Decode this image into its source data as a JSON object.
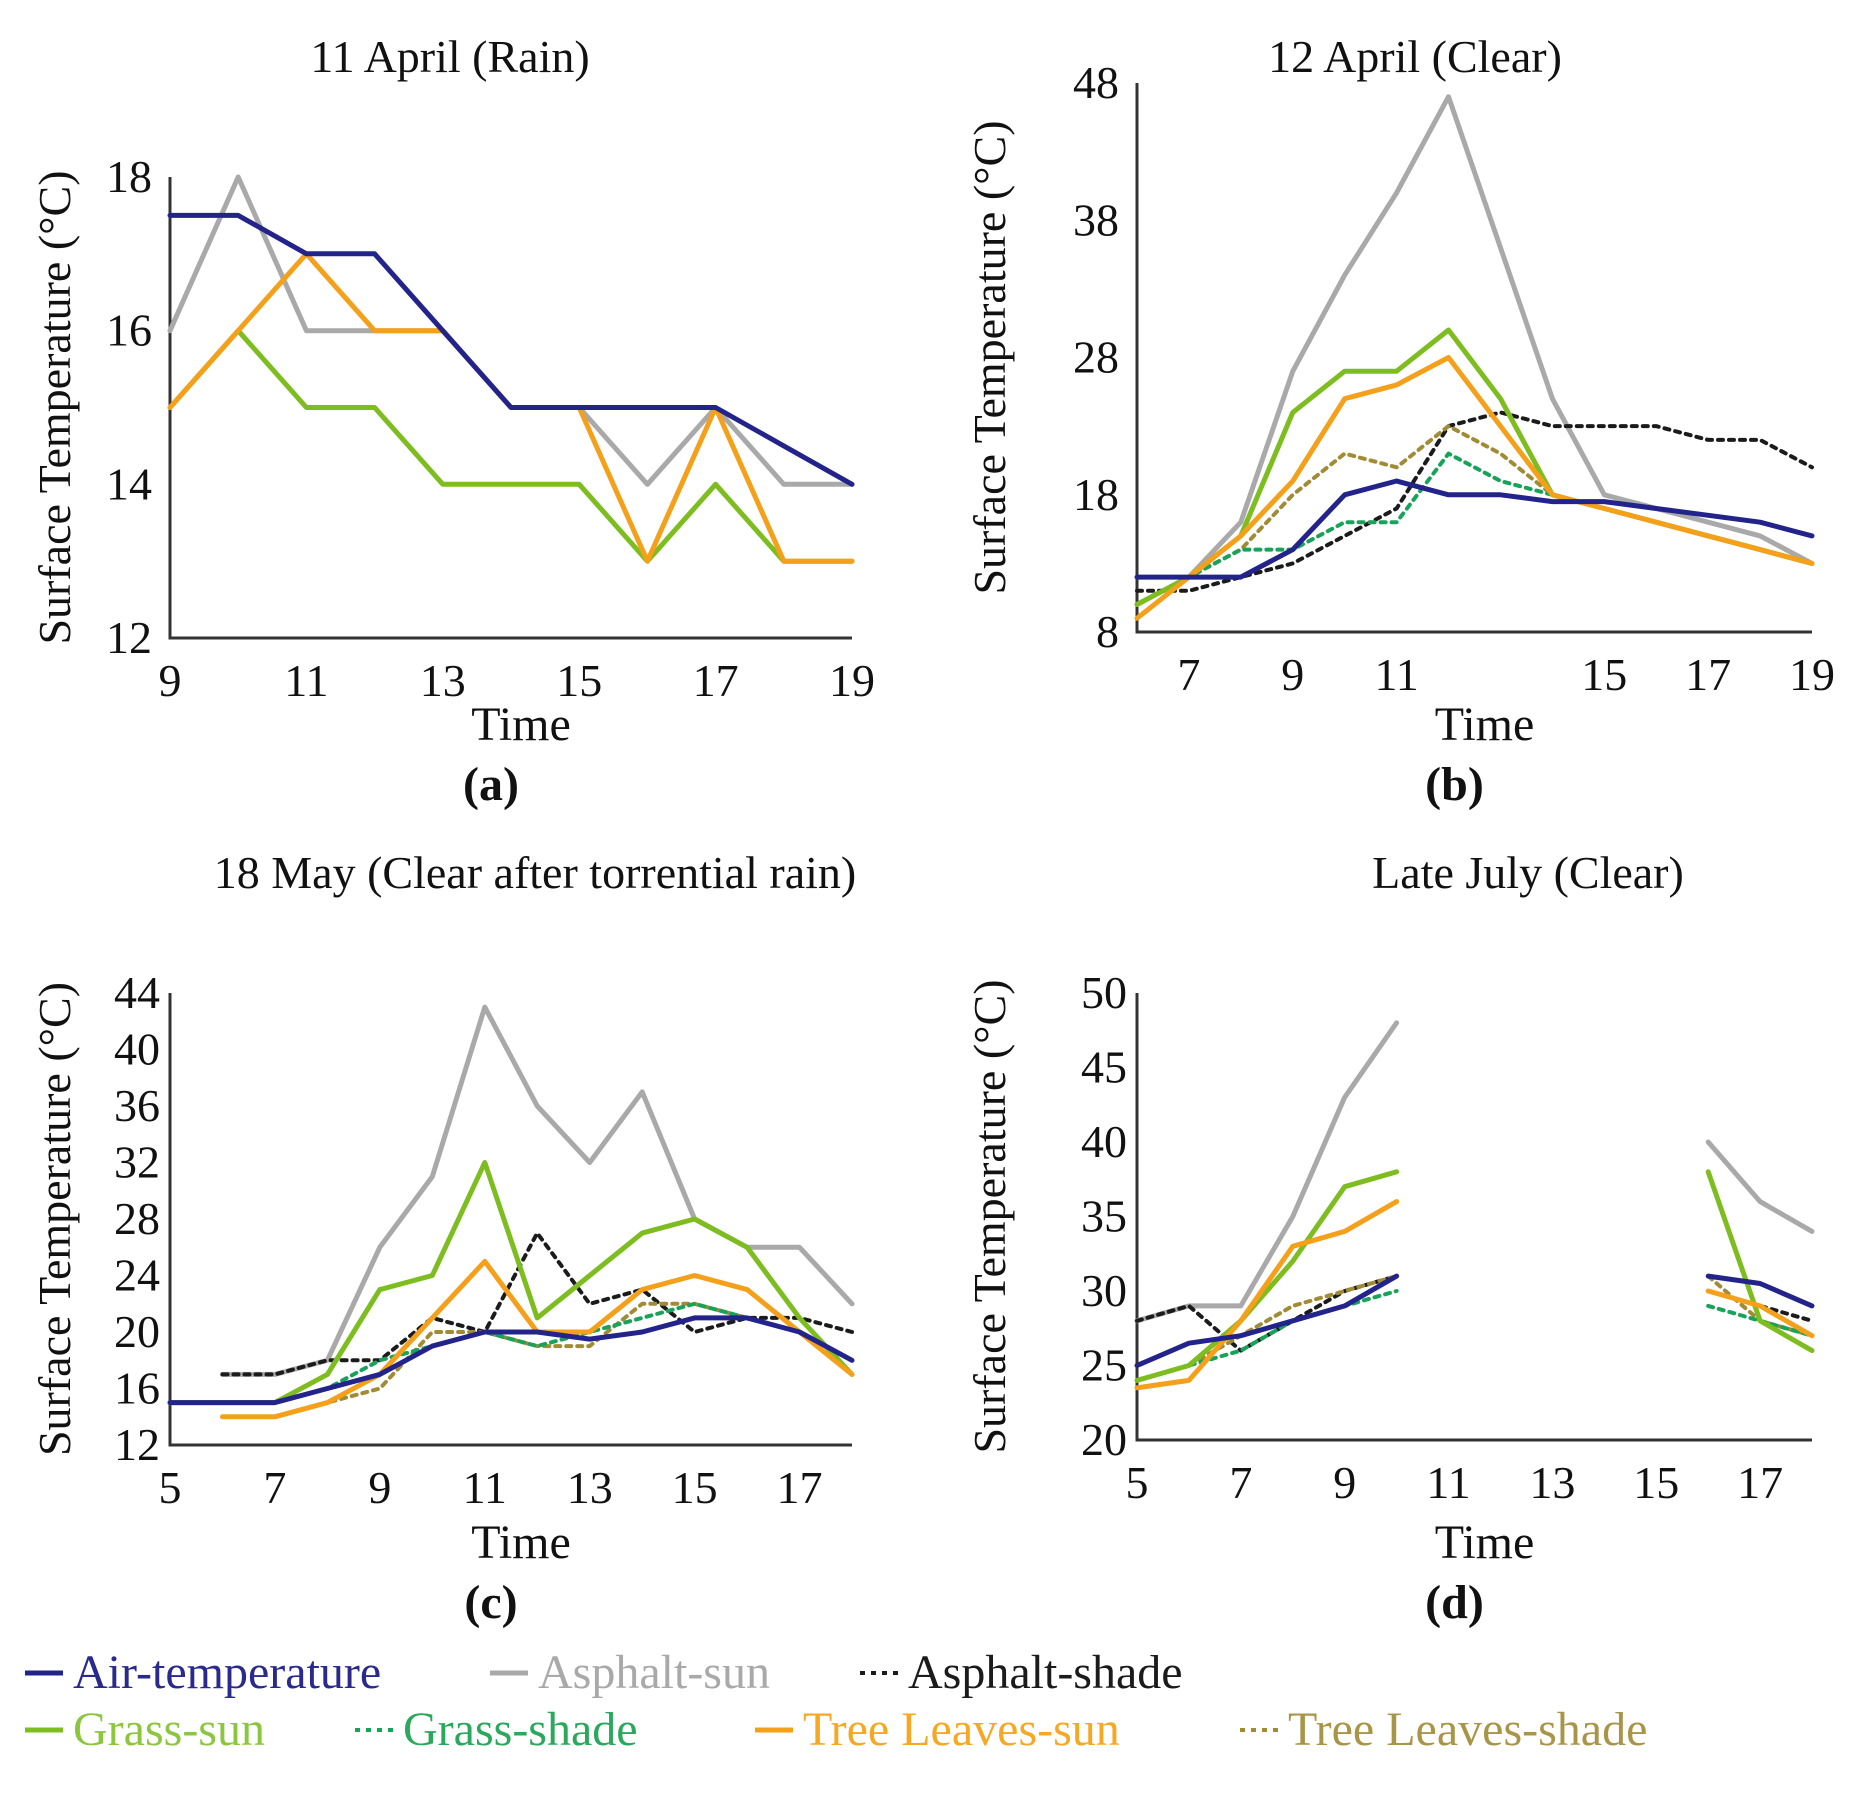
{
  "legend": [
    {
      "key": "air",
      "label": "Air-temperature",
      "color": "#23238c",
      "dash": "",
      "text_color": "#2a2a8e"
    },
    {
      "key": "asun",
      "label": "Asphalt-sun",
      "color": "#a9a9a9",
      "dash": "",
      "text_color": "#a9a9a9"
    },
    {
      "key": "ashade",
      "label": "Asphalt-shade",
      "color": "#1b1b1b",
      "dash": "5 6",
      "text_color": "#1b1b1b"
    },
    {
      "key": "gsun",
      "label": "Grass-sun",
      "color": "#7dbd1f",
      "dash": "",
      "text_color": "#8cc63f"
    },
    {
      "key": "gshade",
      "label": "Grass-shade",
      "color": "#18a35a",
      "dash": "5 6",
      "text_color": "#2aa95c"
    },
    {
      "key": "tsun",
      "label": "Tree Leaves-sun",
      "color": "#f5a01a",
      "dash": "",
      "text_color": "#f7a823"
    },
    {
      "key": "tshade",
      "label": "Tree Leaves-shade",
      "color": "#a28b35",
      "dash": "5 6",
      "text_color": "#a99547"
    }
  ],
  "chart_data": [
    {
      "type": "line",
      "panel": "(a)",
      "title": "11 April (Rain)",
      "xlabel": "Time",
      "ylabel": "Surface Temperature (°C)",
      "xlim": [
        9,
        19
      ],
      "ylim": [
        12,
        18
      ],
      "xticks": [
        9,
        11,
        13,
        15,
        17,
        19
      ],
      "yticks": [
        12,
        14,
        16,
        18
      ],
      "x": [
        9,
        10,
        11,
        12,
        13,
        14,
        15,
        16,
        17,
        18,
        19
      ],
      "series": [
        {
          "key": "asun",
          "values": [
            16,
            18,
            16,
            16,
            16,
            15,
            15,
            14,
            15,
            14,
            14
          ]
        },
        {
          "key": "gsun",
          "values": [
            15,
            16,
            15,
            15,
            14,
            14,
            14,
            13,
            14,
            13,
            13
          ]
        },
        {
          "key": "tsun",
          "values": [
            15,
            16,
            17,
            16,
            16,
            15,
            15,
            13,
            15,
            13,
            13
          ]
        },
        {
          "key": "air",
          "values": [
            17.5,
            17.5,
            17,
            17,
            16,
            15,
            15,
            15,
            15,
            14.5,
            14
          ]
        }
      ]
    },
    {
      "type": "line",
      "panel": "(b)",
      "title": "12 April (Clear)",
      "xlabel": "Time",
      "ylabel": "Surface Temperature (°C)",
      "xlim": [
        6,
        19
      ],
      "ylim": [
        8,
        48
      ],
      "xticks": [
        7,
        9,
        11,
        15,
        17,
        19
      ],
      "yticks": [
        8,
        18,
        28,
        38,
        48
      ],
      "x": [
        6,
        7,
        8,
        9,
        10,
        11,
        12,
        13,
        14,
        15,
        16,
        17,
        18,
        19
      ],
      "series": [
        {
          "key": "asun",
          "values": [
            10,
            12,
            16,
            27,
            34,
            40,
            47,
            36,
            25,
            18,
            17,
            16,
            15,
            13
          ]
        },
        {
          "key": "ashade",
          "values": [
            11,
            11,
            12,
            13,
            15,
            17,
            23,
            24,
            23,
            23,
            23,
            22,
            22,
            20
          ]
        },
        {
          "key": "tshade",
          "values": [
            10,
            12,
            14,
            18,
            21,
            20,
            23,
            21,
            18,
            17,
            16,
            15,
            14,
            13
          ]
        },
        {
          "key": "gshade",
          "values": [
            10,
            12,
            14,
            14,
            16,
            16,
            21,
            19,
            18,
            17,
            16,
            15,
            14,
            13
          ]
        },
        {
          "key": "gsun",
          "values": [
            10,
            12,
            15,
            24,
            27,
            27,
            30,
            25,
            18,
            17,
            16,
            15,
            14,
            13
          ]
        },
        {
          "key": "tsun",
          "values": [
            9,
            12,
            15,
            19,
            25,
            26,
            28,
            23,
            18,
            17,
            16,
            15,
            14,
            13
          ]
        },
        {
          "key": "air",
          "values": [
            12,
            12,
            12,
            14,
            18,
            19,
            18,
            18,
            17.5,
            17.5,
            17,
            16.5,
            16,
            15
          ]
        }
      ]
    },
    {
      "type": "line",
      "panel": "(c)",
      "title": "18 May (Clear after torrential rain)",
      "xlabel": "Time",
      "ylabel": "Surface Temperature (°C)",
      "xlim": [
        5,
        18
      ],
      "ylim": [
        12,
        44
      ],
      "xticks": [
        5,
        7,
        9,
        11,
        13,
        15,
        17
      ],
      "yticks": [
        12,
        16,
        20,
        24,
        28,
        32,
        36,
        40,
        44
      ],
      "x": [
        5,
        6,
        7,
        8,
        9,
        10,
        11,
        12,
        13,
        14,
        15,
        16,
        17,
        18
      ],
      "series": [
        {
          "key": "asun",
          "values": [
            null,
            17,
            17,
            18,
            26,
            31,
            43,
            36,
            32,
            37,
            28,
            26,
            26,
            22
          ]
        },
        {
          "key": "ashade",
          "values": [
            null,
            17,
            17,
            18,
            18,
            21,
            20,
            27,
            22,
            23,
            20,
            21,
            21,
            20
          ]
        },
        {
          "key": "tshade",
          "values": [
            null,
            14,
            14,
            15,
            16,
            20,
            20,
            19,
            19,
            22,
            22,
            21,
            20,
            18
          ]
        },
        {
          "key": "gshade",
          "values": [
            15,
            15,
            15,
            16,
            18,
            19,
            20,
            19,
            20,
            21,
            22,
            21,
            20,
            18
          ]
        },
        {
          "key": "gsun",
          "values": [
            15,
            15,
            15,
            17,
            23,
            24,
            32,
            21,
            24,
            27,
            28,
            26,
            21,
            17
          ]
        },
        {
          "key": "tsun",
          "values": [
            null,
            14,
            14,
            15,
            17,
            21,
            25,
            20,
            20,
            23,
            24,
            23,
            20,
            17
          ]
        },
        {
          "key": "air",
          "values": [
            15,
            15,
            15,
            16,
            17,
            19,
            20,
            20,
            19.5,
            20,
            21,
            21,
            20,
            18
          ]
        }
      ]
    },
    {
      "type": "line",
      "panel": "(d)",
      "title": "Late July (Clear)",
      "xlabel": "Time",
      "ylabel": "Surface Temperature (°C)",
      "xlim": [
        5,
        18
      ],
      "ylim": [
        20,
        50
      ],
      "xticks": [
        5,
        7,
        9,
        11,
        13,
        15,
        17
      ],
      "yticks": [
        20,
        25,
        30,
        35,
        40,
        45,
        50
      ],
      "x": [
        5,
        6,
        7,
        8,
        9,
        10,
        16,
        17,
        18
      ],
      "series": [
        {
          "key": "asun",
          "values": [
            28,
            29,
            29,
            35,
            43,
            48,
            40,
            36,
            34
          ]
        },
        {
          "key": "ashade",
          "values": [
            28,
            29,
            26,
            28,
            30,
            31,
            30,
            29,
            28
          ]
        },
        {
          "key": "tshade",
          "values": [
            24,
            25,
            27,
            29,
            30,
            31,
            31,
            28,
            27
          ]
        },
        {
          "key": "gshade",
          "values": [
            24,
            25,
            26,
            28,
            29,
            30,
            29,
            28,
            27
          ]
        },
        {
          "key": "gsun",
          "values": [
            24,
            25,
            28,
            32,
            37,
            38,
            38,
            28,
            26
          ]
        },
        {
          "key": "tsun",
          "values": [
            23.5,
            24,
            28,
            33,
            34,
            36,
            30,
            29,
            27
          ]
        },
        {
          "key": "air",
          "values": [
            25,
            26.5,
            27,
            28,
            29,
            31,
            31,
            30.5,
            29
          ]
        }
      ]
    }
  ]
}
